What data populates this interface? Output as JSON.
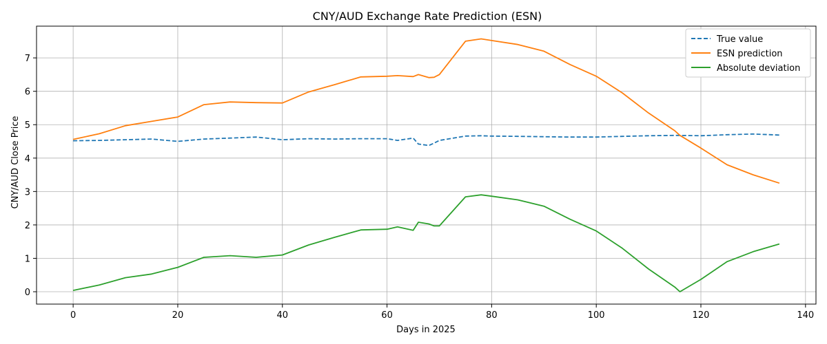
{
  "chart_data": {
    "type": "line",
    "title": "CNY/AUD Exchange Rate Prediction (ESN)",
    "xlabel": "Days in 2025",
    "ylabel": "CNY/AUD Close Price",
    "xlim": [
      -7,
      142
    ],
    "ylim": [
      -0.37,
      7.95
    ],
    "xticks": [
      0,
      20,
      40,
      60,
      80,
      100,
      120,
      140
    ],
    "yticks": [
      0,
      1,
      2,
      3,
      4,
      5,
      6,
      7
    ],
    "grid": true,
    "legend_position": "top-right",
    "x": [
      0,
      5,
      10,
      15,
      20,
      25,
      30,
      35,
      40,
      45,
      50,
      55,
      60,
      62,
      65,
      66,
      68,
      69,
      70,
      75,
      78,
      80,
      85,
      90,
      95,
      100,
      105,
      110,
      115,
      116,
      120,
      125,
      130,
      135
    ],
    "series": [
      {
        "name": "True value",
        "color": "#1f77b4",
        "style": "dashed",
        "values": [
          4.52,
          4.53,
          4.55,
          4.57,
          4.5,
          4.57,
          4.6,
          4.63,
          4.55,
          4.58,
          4.57,
          4.58,
          4.58,
          4.53,
          4.6,
          4.42,
          4.38,
          4.45,
          4.53,
          4.66,
          4.67,
          4.66,
          4.65,
          4.64,
          4.63,
          4.63,
          4.65,
          4.67,
          4.68,
          4.68,
          4.67,
          4.7,
          4.72,
          4.69
        ]
      },
      {
        "name": "ESN prediction",
        "color": "#ff7f0e",
        "style": "solid",
        "values": [
          4.56,
          4.73,
          4.97,
          5.1,
          5.23,
          5.6,
          5.68,
          5.66,
          5.65,
          5.98,
          6.2,
          6.43,
          6.45,
          6.47,
          6.44,
          6.5,
          6.41,
          6.42,
          6.5,
          7.5,
          7.57,
          7.52,
          7.4,
          7.2,
          6.8,
          6.45,
          5.95,
          5.35,
          4.82,
          4.68,
          4.3,
          3.8,
          3.5,
          3.25
        ]
      },
      {
        "name": "Absolute deviation",
        "color": "#2ca02c",
        "style": "solid",
        "values": [
          0.04,
          0.2,
          0.42,
          0.53,
          0.73,
          1.03,
          1.08,
          1.03,
          1.1,
          1.4,
          1.63,
          1.85,
          1.87,
          1.94,
          1.84,
          2.08,
          2.03,
          1.97,
          1.97,
          2.84,
          2.9,
          2.86,
          2.75,
          2.56,
          2.17,
          1.82,
          1.3,
          0.68,
          0.14,
          0.0,
          0.37,
          0.9,
          1.2,
          1.43
        ]
      }
    ]
  }
}
